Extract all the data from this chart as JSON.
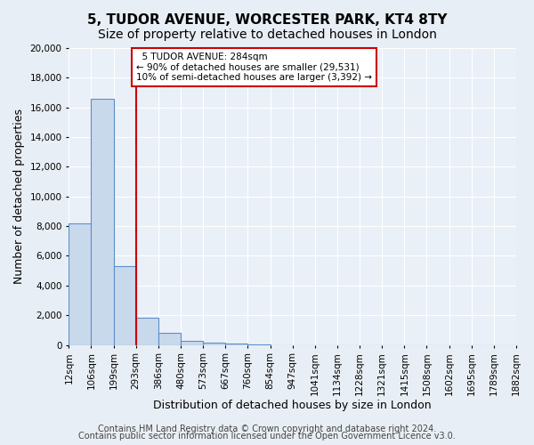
{
  "title": "5, TUDOR AVENUE, WORCESTER PARK, KT4 8TY",
  "subtitle": "Size of property relative to detached houses in London",
  "xlabel": "Distribution of detached houses by size in London",
  "ylabel": "Number of detached properties",
  "bin_labels": [
    "12sqm",
    "106sqm",
    "199sqm",
    "293sqm",
    "386sqm",
    "480sqm",
    "573sqm",
    "667sqm",
    "760sqm",
    "854sqm",
    "947sqm",
    "1041sqm",
    "1134sqm",
    "1228sqm",
    "1321sqm",
    "1415sqm",
    "1508sqm",
    "1602sqm",
    "1695sqm",
    "1789sqm",
    "1882sqm"
  ],
  "bar_heights": [
    8200,
    16600,
    5300,
    1850,
    800,
    300,
    150,
    80,
    50,
    0,
    0,
    0,
    0,
    0,
    0,
    0,
    0,
    0,
    0,
    0
  ],
  "bar_color": "#c9d9ec",
  "bar_edge_color": "#5b8fc9",
  "ylim": [
    0,
    20000
  ],
  "yticks": [
    0,
    2000,
    4000,
    6000,
    8000,
    10000,
    12000,
    14000,
    16000,
    18000,
    20000
  ],
  "vline_pos": 3.0,
  "vline_color": "#cc0000",
  "annotation_title": "5 TUDOR AVENUE: 284sqm",
  "annotation_line1": "← 90% of detached houses are smaller (29,531)",
  "annotation_line2": "10% of semi-detached houses are larger (3,392) →",
  "annotation_box_color": "#ffffff",
  "annotation_box_edge": "#cc0000",
  "footer1": "Contains HM Land Registry data © Crown copyright and database right 2024.",
  "footer2": "Contains public sector information licensed under the Open Government Licence v3.0.",
  "bg_color": "#e8eef5",
  "plot_bg_color": "#eaf0f8",
  "grid_color": "#ffffff",
  "title_fontsize": 11,
  "subtitle_fontsize": 10,
  "axis_label_fontsize": 9,
  "tick_fontsize": 7.5,
  "footer_fontsize": 7
}
